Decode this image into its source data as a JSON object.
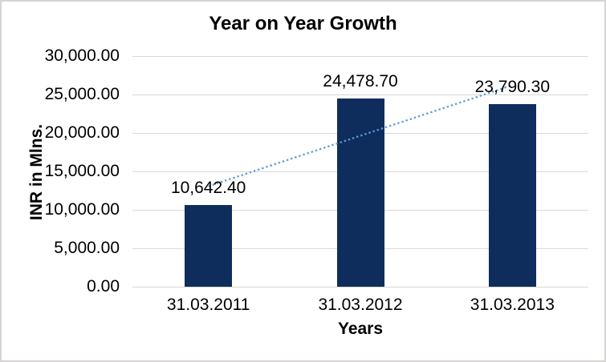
{
  "chart_data": {
    "type": "bar",
    "title": "Year on Year Growth",
    "xlabel": "Years",
    "ylabel": "INR in Mlns.",
    "categories": [
      "31.03.2011",
      "31.03.2012",
      "31.03.2013"
    ],
    "values": [
      10642.4,
      24478.7,
      23790.3
    ],
    "data_labels": [
      "10,642.40",
      "24,478.70",
      "23,790.30"
    ],
    "ylim": [
      0,
      30000
    ],
    "ytick_step": 5000,
    "ytick_labels": [
      "0.00",
      "5,000.00",
      "10,000.00",
      "15,000.00",
      "20,000.00",
      "25,000.00",
      "30,000.00"
    ],
    "grid": true,
    "legend": "none",
    "colors": {
      "bar": "#0F2D5C",
      "trendline": "#5B9BD5",
      "gridline": "#D9D9D9",
      "text": "#000000"
    },
    "trendline": {
      "fit": "linear",
      "style": "dotted",
      "fitted_start": 13063,
      "fitted_end": 26211
    }
  }
}
